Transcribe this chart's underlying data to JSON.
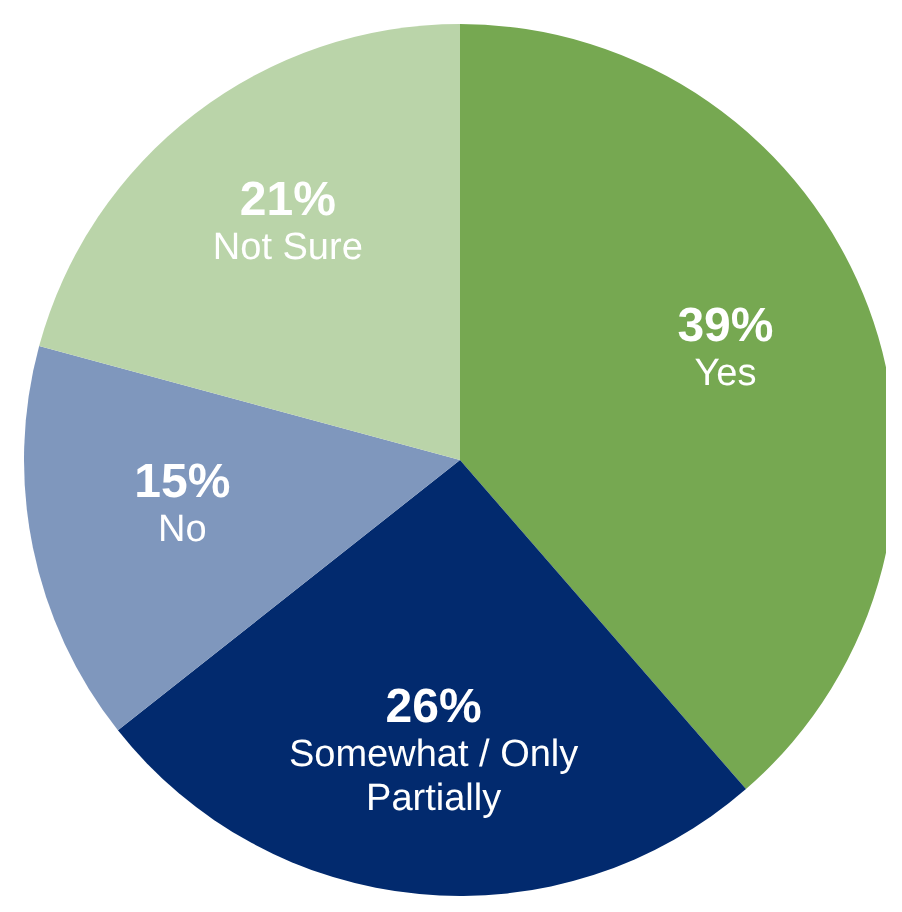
{
  "chart_data": {
    "type": "pie",
    "categories": [
      "Yes",
      "Somewhat / Only Partially",
      "No",
      "Not Sure"
    ],
    "values": [
      39,
      26,
      15,
      21
    ],
    "value_labels": [
      "39%",
      "26%",
      "15%",
      "21%"
    ],
    "colors": [
      "#76a851",
      "#022a6e",
      "#7f97bd",
      "#bad4a9"
    ]
  }
}
